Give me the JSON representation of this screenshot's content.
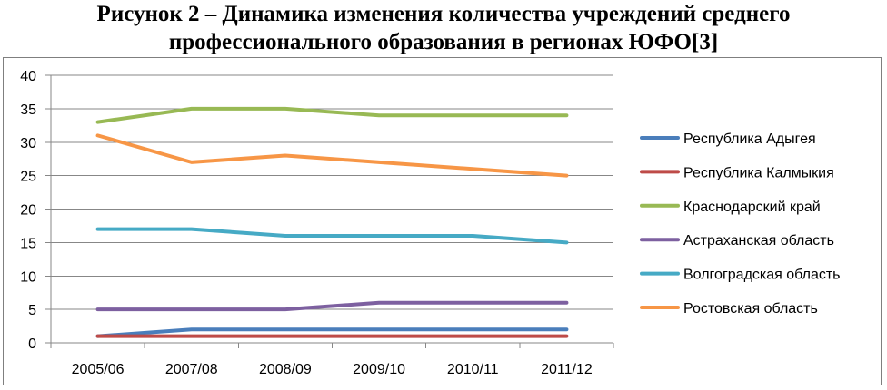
{
  "title": {
    "line1": "Рисунок 2 – Динамика изменения количества учреждений среднего",
    "line2": "профессионального образования в регионах ЮФО[3]"
  },
  "chart_data": {
    "type": "line",
    "categories": [
      "2005/06",
      "2007/08",
      "2008/09",
      "2009/10",
      "2010/11",
      "2011/12"
    ],
    "ylim": [
      0,
      40
    ],
    "yticks": [
      0,
      5,
      10,
      15,
      20,
      25,
      30,
      35,
      40
    ],
    "grid": true,
    "legend": "right",
    "series": [
      {
        "name": "Республика Адыгея",
        "color": "#4a7ebb",
        "values": [
          1,
          2,
          2,
          2,
          2,
          2
        ]
      },
      {
        "name": "Республика Калмыкия",
        "color": "#be4b48",
        "values": [
          1,
          1,
          1,
          1,
          1,
          1
        ]
      },
      {
        "name": "Краснодарский край",
        "color": "#98b954",
        "values": [
          33,
          35,
          35,
          34,
          34,
          34
        ]
      },
      {
        "name": "Астраханская область",
        "color": "#7d60a0",
        "values": [
          5,
          5,
          5,
          6,
          6,
          6
        ]
      },
      {
        "name": "Волгоградская область",
        "color": "#46aac5",
        "values": [
          17,
          17,
          16,
          16,
          16,
          15
        ]
      },
      {
        "name": "Ростовская область",
        "color": "#f79646",
        "values": [
          31,
          27,
          28,
          27,
          26,
          25
        ]
      }
    ]
  }
}
